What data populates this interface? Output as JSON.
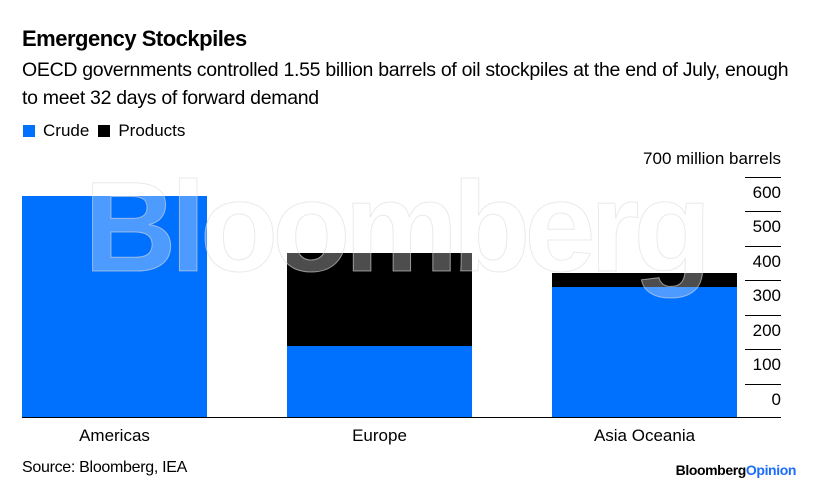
{
  "header": {
    "title": "Emergency Stockpiles",
    "subtitle": "OECD governments controlled 1.55 billion barrels of oil stockpiles at the end of July, enough to meet 32 days of forward demand"
  },
  "legend": [
    {
      "label": "Crude",
      "color": "#0070FF"
    },
    {
      "label": "Products",
      "color": "#000000"
    }
  ],
  "axis": {
    "unit_label": "700 million barrels",
    "ticks": [
      "600",
      "500",
      "400",
      "300",
      "200",
      "100",
      "0"
    ]
  },
  "categories": [
    "Americas",
    "Europe",
    "Asia Oceania"
  ],
  "footer": {
    "source": "Source: Bloomberg, IEA",
    "brand_primary": "Bloomberg",
    "brand_secondary": "Opinion"
  },
  "watermark": "Bloomberg",
  "chart_data": {
    "type": "bar",
    "stacked": true,
    "title": "Emergency Stockpiles",
    "subtitle": "OECD governments controlled 1.55 billion barrels of oil stockpiles at the end of July, enough to meet 32 days of forward demand",
    "categories": [
      "Americas",
      "Europe",
      "Asia Oceania"
    ],
    "series": [
      {
        "name": "Crude",
        "color": "#0070FF",
        "values": [
          645,
          210,
          380
        ]
      },
      {
        "name": "Products",
        "color": "#000000",
        "values": [
          0,
          270,
          40
        ]
      }
    ],
    "xlabel": "",
    "ylabel": "million barrels",
    "ylim": [
      0,
      700
    ],
    "yticks": [
      0,
      100,
      200,
      300,
      400,
      500,
      600,
      700
    ],
    "grid": false,
    "legend_position": "top-left",
    "source": "Source: Bloomberg, IEA"
  }
}
